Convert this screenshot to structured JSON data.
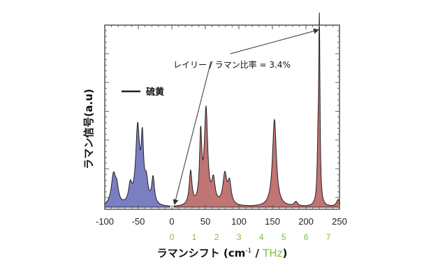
{
  "chart_data": {
    "type": "line",
    "title": "",
    "xlabel_main": "ラマンシフト (cm",
    "xlabel_sup": "-1",
    "xlabel_sep": " / ",
    "xlabel_thz": "THz",
    "xlabel_close": ")",
    "ylabel": "ラマン信号(a.u)",
    "xlim": [
      -100,
      250
    ],
    "x_ticks": [
      "-100",
      "-50",
      "0",
      "50",
      "100",
      "150",
      "200",
      "250"
    ],
    "x_tick_values": [
      -100,
      -50,
      0,
      50,
      100,
      150,
      200,
      250
    ],
    "thz_ticks": [
      "0",
      "1",
      "2",
      "3",
      "4",
      "5",
      "6",
      "7"
    ],
    "thz_tick_values": [
      0,
      1,
      2,
      3,
      4,
      5,
      6,
      7
    ],
    "grid": false,
    "legend": {
      "position": "left",
      "entries": [
        {
          "name": "硫黄"
        }
      ]
    },
    "annotation": {
      "text": "レイリー / ラマン比率 = 3.4%"
    },
    "colors": {
      "anti_stokes": "#7a7fc2",
      "stokes": "#c07474",
      "line": "#222222",
      "thz": "#7cbf3c"
    },
    "series": [
      {
        "name": "硫黄",
        "anti_stokes_peaks": [
          {
            "x": -87,
            "height": 0.17,
            "width": 4
          },
          {
            "x": -82,
            "height": 0.08,
            "width": 3
          },
          {
            "x": -62,
            "height": 0.1,
            "width": 3
          },
          {
            "x": -51,
            "height": 0.43,
            "width": 3.5
          },
          {
            "x": -44,
            "height": 0.33,
            "width": 2.2
          },
          {
            "x": -38,
            "height": 0.12,
            "width": 3
          },
          {
            "x": -28,
            "height": 0.15,
            "width": 2.5
          }
        ],
        "stokes_peaks": [
          {
            "x": 28,
            "height": 0.19,
            "width": 2.5
          },
          {
            "x": 43,
            "height": 0.38,
            "width": 2
          },
          {
            "x": 51,
            "height": 0.53,
            "width": 3
          },
          {
            "x": 62,
            "height": 0.13,
            "width": 3
          },
          {
            "x": 79,
            "height": 0.17,
            "width": 3.5
          },
          {
            "x": 86,
            "height": 0.12,
            "width": 3
          },
          {
            "x": 153,
            "height": 0.49,
            "width": 3.5
          },
          {
            "x": 185,
            "height": 0.025,
            "width": 3
          },
          {
            "x": 218,
            "height": 0.28,
            "width": 1.4
          },
          {
            "x": 220,
            "height": 1.0,
            "width": 1.1
          },
          {
            "x": 248,
            "height": 0.04,
            "width": 3
          }
        ]
      }
    ]
  }
}
